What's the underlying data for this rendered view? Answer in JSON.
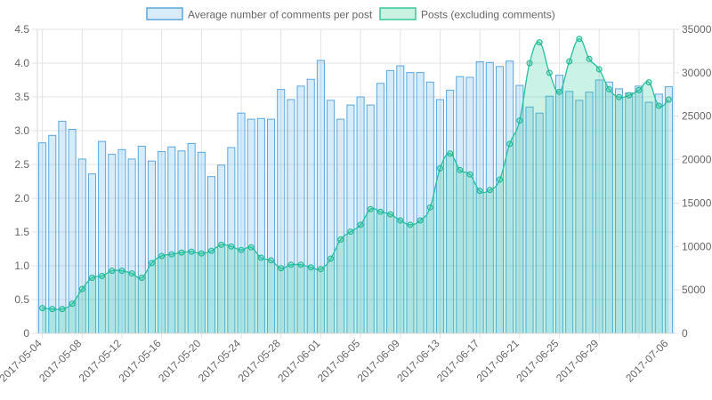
{
  "chart_data": {
    "type": "bar",
    "legend": {
      "position": "top",
      "items": [
        {
          "label": "Average number of comments per post",
          "fill": "#d8ebf8",
          "stroke": "#5aa7dd"
        },
        {
          "label": "Posts (excluding comments)",
          "fill": "#c9f2e2",
          "stroke": "#37c79a"
        }
      ]
    },
    "x_tick_labels": [
      "2017-05-04",
      "2017-05-08",
      "2017-05-12",
      "2017-05-16",
      "2017-05-20",
      "2017-05-24",
      "2017-05-28",
      "2017-06-01",
      "2017-06-05",
      "2017-06-09",
      "2017-06-13",
      "2017-06-17",
      "2017-06-21",
      "2017-06-25",
      "2017-06-29",
      "2017-07-06"
    ],
    "left_axis": {
      "min": 0,
      "max": 4.5,
      "ticks": [
        "0",
        "0.5",
        "1.0",
        "1.5",
        "2.0",
        "2.5",
        "3.0",
        "3.5",
        "4.0",
        "4.5"
      ]
    },
    "right_axis": {
      "min": 0,
      "max": 35000,
      "ticks": [
        "0",
        "5000",
        "10000",
        "15000",
        "20000",
        "25000",
        "30000",
        "35000"
      ]
    },
    "grid": true,
    "series": [
      {
        "name": "Average number of comments per post",
        "type": "bar",
        "axis": "left",
        "color": "#5aa7dd",
        "values": [
          2.82,
          2.93,
          3.14,
          3.02,
          2.58,
          2.36,
          2.84,
          2.65,
          2.72,
          2.58,
          2.77,
          2.55,
          2.69,
          2.76,
          2.7,
          2.81,
          2.68,
          2.32,
          2.49,
          2.75,
          3.26,
          3.17,
          3.18,
          3.17,
          3.61,
          3.46,
          3.66,
          3.76,
          4.04,
          3.45,
          3.17,
          3.38,
          3.5,
          3.38,
          3.7,
          3.89,
          3.96,
          3.86,
          3.86,
          3.72,
          3.46,
          3.6,
          3.8,
          3.79,
          4.02,
          4.01,
          3.95,
          4.03,
          3.67,
          3.35,
          3.26,
          3.51,
          3.82,
          3.58,
          3.45,
          3.57,
          3.75,
          3.72,
          3.62,
          3.56,
          3.66,
          3.42,
          3.54,
          3.65
        ]
      },
      {
        "name": "Posts (excluding comments)",
        "type": "area",
        "axis": "right",
        "color": "#2ecc9a",
        "values": [
          2900,
          2800,
          2800,
          3400,
          5100,
          6400,
          6600,
          7200,
          7200,
          6900,
          6400,
          8100,
          8900,
          9100,
          9300,
          9400,
          9200,
          9500,
          10200,
          10000,
          9600,
          9900,
          8700,
          8400,
          7500,
          7900,
          7900,
          7600,
          7400,
          8600,
          10800,
          11700,
          12500,
          14300,
          14000,
          13700,
          13000,
          12500,
          13000,
          14500,
          19000,
          20700,
          18800,
          18300,
          16400,
          16500,
          17700,
          21800,
          24500,
          31100,
          33500,
          30000,
          27800,
          31300,
          33900,
          31600,
          30400,
          28100,
          27200,
          27400,
          28000,
          28900,
          26200,
          26900
        ]
      }
    ]
  }
}
